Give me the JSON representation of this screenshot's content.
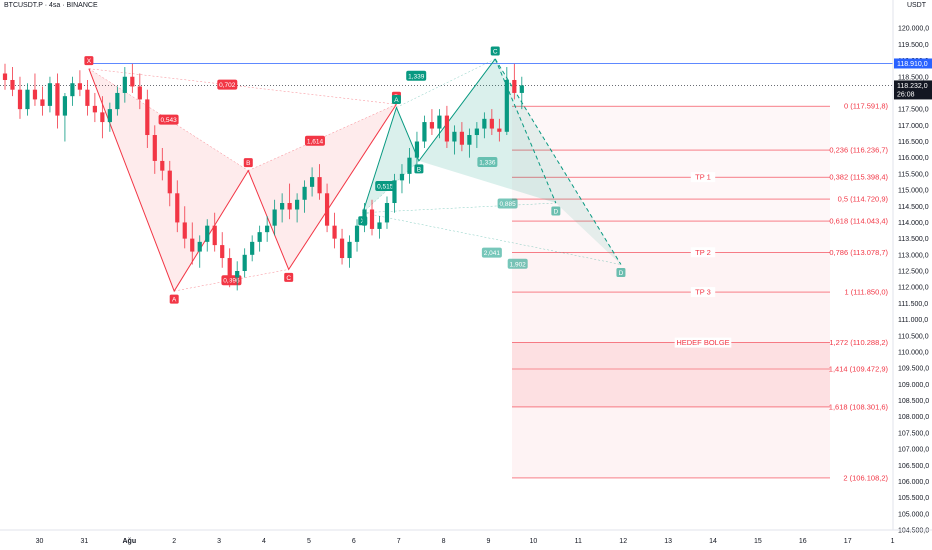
{
  "header": {
    "title": "BTCUSDT.P · 4sa · BINANCE",
    "currency": "USDT"
  },
  "price_labels": {
    "blue_line": "118.910,0",
    "current_price": "118.232,0",
    "countdown": "26:08"
  },
  "colors": {
    "up": "#089981",
    "down": "#f23645",
    "x_line": "#2962ff",
    "fib": "#f23645",
    "xabcd_bull": "#089981",
    "xabcd_bear": "#f23645"
  },
  "chart_data": {
    "type": "candlestick",
    "ylim": [
      104500,
      120500
    ],
    "y_ticks": [
      "104.500,0",
      "105.000,0",
      "105.500,0",
      "106.000,0",
      "106.500,0",
      "107.000,0",
      "107.500,0",
      "108.000,0",
      "108.500,0",
      "109.000,0",
      "109.500,0",
      "110.000,0",
      "110.500,0",
      "111.000,0",
      "111.500,0",
      "112.000,0",
      "112.500,0",
      "113.000,0",
      "113.500,0",
      "114.000,0",
      "114.500,0",
      "115.000,0",
      "115.500,0",
      "116.000,0",
      "116.500,0",
      "117.000,0",
      "117.500,0",
      "118.000,0",
      "118.500,0",
      "119.000,0",
      "119.500,0",
      "120.000,0"
    ],
    "x_ticks": [
      "30",
      "31",
      "Ağu",
      "2",
      "3",
      "4",
      "5",
      "6",
      "7",
      "8",
      "9",
      "10",
      "11",
      "12",
      "13",
      "14",
      "15",
      "16",
      "17",
      "1"
    ],
    "candles_ohlc": [
      [
        118600,
        118900,
        118100,
        118400
      ],
      [
        118400,
        118800,
        117900,
        118100
      ],
      [
        118100,
        118500,
        117200,
        117500
      ],
      [
        117500,
        118300,
        117300,
        118100
      ],
      [
        118100,
        118600,
        117600,
        117800
      ],
      [
        117800,
        118200,
        117300,
        117600
      ],
      [
        117600,
        118500,
        117400,
        118300
      ],
      [
        118300,
        118600,
        116900,
        117300
      ],
      [
        117300,
        118000,
        116500,
        117900
      ],
      [
        117900,
        118500,
        117600,
        118300
      ],
      [
        118300,
        118700,
        117900,
        118100
      ],
      [
        118100,
        118400,
        117300,
        117600
      ],
      [
        117600,
        118000,
        117100,
        117400
      ],
      [
        117400,
        117900,
        116600,
        117100
      ],
      [
        117100,
        117700,
        116800,
        117500
      ],
      [
        117500,
        118200,
        117300,
        118000
      ],
      [
        118000,
        118800,
        117700,
        118500
      ],
      [
        118500,
        118900,
        118000,
        118200
      ],
      [
        118200,
        118600,
        117500,
        117800
      ],
      [
        117800,
        118100,
        116300,
        116700
      ],
      [
        116700,
        117000,
        115500,
        115900
      ],
      [
        115900,
        116300,
        115300,
        115600
      ],
      [
        115600,
        115900,
        114500,
        114900
      ],
      [
        114900,
        115300,
        113700,
        114000
      ],
      [
        114000,
        114500,
        113200,
        113500
      ],
      [
        113500,
        114000,
        112700,
        113100
      ],
      [
        113100,
        113600,
        112600,
        113400
      ],
      [
        113400,
        114100,
        113100,
        113900
      ],
      [
        113900,
        114300,
        113100,
        113300
      ],
      [
        113300,
        113700,
        112600,
        112900
      ],
      [
        112900,
        113200,
        112000,
        112300
      ],
      [
        112300,
        112800,
        111900,
        112500
      ],
      [
        112500,
        113200,
        112300,
        113000
      ],
      [
        113000,
        113600,
        112800,
        113400
      ],
      [
        113400,
        113900,
        113100,
        113700
      ],
      [
        113700,
        114200,
        113400,
        113900
      ],
      [
        113900,
        114700,
        113600,
        114400
      ],
      [
        114400,
        114900,
        114000,
        114600
      ],
      [
        114600,
        115200,
        114100,
        114400
      ],
      [
        114400,
        114900,
        114000,
        114700
      ],
      [
        114700,
        115300,
        114300,
        115100
      ],
      [
        115100,
        115700,
        114800,
        115400
      ],
      [
        115400,
        115800,
        114700,
        114900
      ],
      [
        114900,
        115200,
        113700,
        113900
      ],
      [
        113900,
        114300,
        113200,
        113500
      ],
      [
        113500,
        113800,
        112700,
        112900
      ],
      [
        112900,
        113600,
        112600,
        113400
      ],
      [
        113400,
        114100,
        113100,
        113900
      ],
      [
        113900,
        114600,
        113700,
        114400
      ],
      [
        114400,
        114700,
        113600,
        113800
      ],
      [
        113800,
        114200,
        113500,
        114000
      ],
      [
        114000,
        114800,
        113800,
        114600
      ],
      [
        114600,
        115500,
        114300,
        115300
      ],
      [
        115300,
        115800,
        114900,
        115500
      ],
      [
        115500,
        116300,
        115200,
        116000
      ],
      [
        116000,
        116800,
        115700,
        116500
      ],
      [
        116500,
        117300,
        116300,
        117100
      ],
      [
        117100,
        117500,
        116700,
        116900
      ],
      [
        116900,
        117500,
        116600,
        117300
      ],
      [
        117300,
        117600,
        116300,
        116500
      ],
      [
        116500,
        117000,
        116100,
        116800
      ],
      [
        116800,
        117100,
        116200,
        116400
      ],
      [
        116400,
        116900,
        116000,
        116700
      ],
      [
        116700,
        117100,
        116300,
        116900
      ],
      [
        116900,
        117400,
        116600,
        117200
      ],
      [
        117200,
        117500,
        116700,
        116900
      ],
      [
        116900,
        117200,
        116500,
        116800
      ],
      [
        116800,
        118800,
        116700,
        118400
      ],
      [
        118400,
        118900,
        117800,
        118000
      ],
      [
        118000,
        118500,
        117500,
        118232
      ]
    ],
    "blue_line_price": 118910,
    "current_price": 118232,
    "fib_levels": [
      {
        "ratio": "0",
        "price": 117591.8,
        "label": "0 (117.591,8)"
      },
      {
        "ratio": "0,236",
        "price": 116236.7,
        "label": "0,236 (116.236,7)"
      },
      {
        "ratio": "0,382",
        "price": 115398.4,
        "label": "0,382 (115.398,4)",
        "tag": "TP 1"
      },
      {
        "ratio": "0,5",
        "price": 114720.9,
        "label": "0,5 (114.720,9)"
      },
      {
        "ratio": "0,618",
        "price": 114043.4,
        "label": "0,618 (114.043,4)"
      },
      {
        "ratio": "0,786",
        "price": 113078.7,
        "label": "0,786 (113.078,7)",
        "tag": "TP 2"
      },
      {
        "ratio": "1",
        "price": 111850.0,
        "label": "1 (111.850,0)",
        "tag": "TP 3"
      },
      {
        "ratio": "1,272",
        "price": 110288.2,
        "label": "1,272 (110.288,2)",
        "tag": "HEDEF BOLGE"
      },
      {
        "ratio": "1,414",
        "price": 109472.9,
        "label": "1,414 (109.472,9)"
      },
      {
        "ratio": "1,618",
        "price": 108301.6,
        "label": "1,618 (108.301,6)"
      },
      {
        "ratio": "2",
        "price": 106108.2,
        "label": "2 (106.108,2)"
      }
    ],
    "pattern_bear": {
      "points": [
        {
          "name": "X",
          "time": 1.1,
          "price": 118750
        },
        {
          "name": "A",
          "time": 3.0,
          "price": 111880
        },
        {
          "name": "B",
          "time": 4.65,
          "price": 115600
        },
        {
          "name": "C",
          "time": 5.55,
          "price": 112550
        },
        {
          "name": "D",
          "time": 7.95,
          "price": 117650
        }
      ],
      "ratios": [
        "0,702",
        "0,543",
        "1,614",
        "0,896"
      ]
    },
    "pattern_bull": {
      "points": [
        {
          "name": "X",
          "time": 7.2,
          "price": 114300
        },
        {
          "name": "A",
          "time": 7.95,
          "price": 117550
        },
        {
          "name": "B",
          "time": 8.45,
          "price": 115900
        },
        {
          "name": "C",
          "time": 10.15,
          "price": 119050
        },
        {
          "name": "D",
          "time": 11.5,
          "price": 114600
        },
        {
          "name": "D",
          "time": 12.95,
          "price": 112700
        }
      ],
      "ratios": [
        "1,339",
        "0,515",
        "1,336",
        "0,885",
        "2,041",
        "1,902"
      ]
    }
  }
}
